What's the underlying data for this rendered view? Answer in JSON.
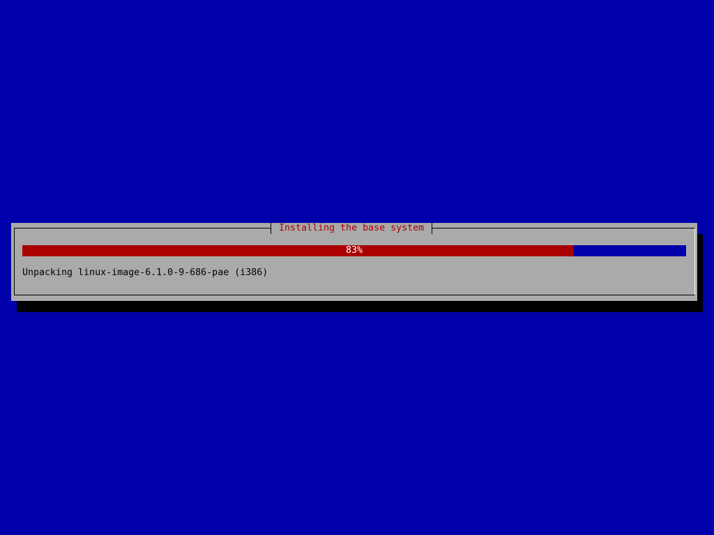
{
  "dialog": {
    "title": "Installing the base system",
    "progress": {
      "percent": 83,
      "label": "83%",
      "fill_color": "#aa0000",
      "track_color": "#0000aa"
    },
    "status_text": "Unpacking linux-image-6.1.0-9-686-pae (i386)"
  },
  "colors": {
    "background": "#0000aa",
    "dialog": "#aaaaaa",
    "title": "#aa0000"
  }
}
